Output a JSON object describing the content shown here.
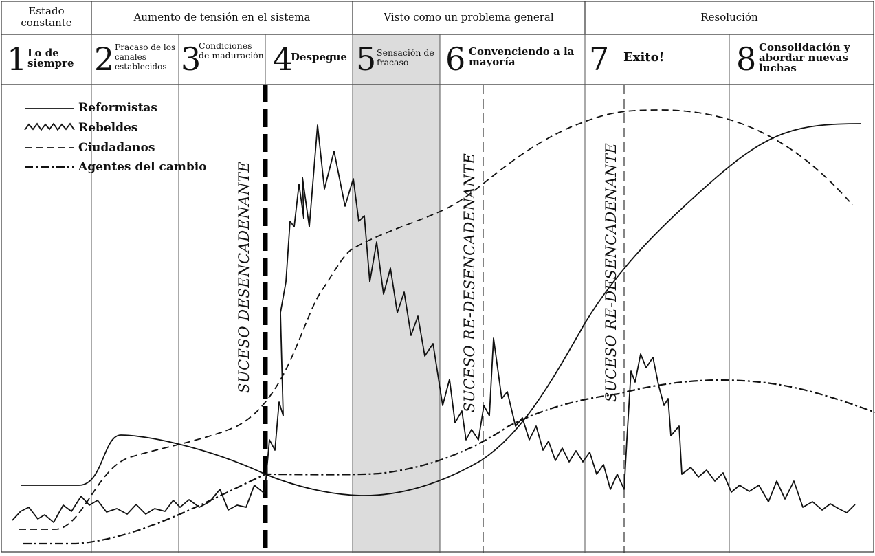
{
  "groups": [
    {
      "label": "Estado constante"
    },
    {
      "label": "Aumento de tensión en el sistema"
    },
    {
      "label": "Visto como un problema general"
    },
    {
      "label": "Resolución"
    }
  ],
  "stages": [
    {
      "num": "1",
      "label": "Lo de siempre"
    },
    {
      "num": "2",
      "label": "Fracaso de los canales establecidos"
    },
    {
      "num": "3",
      "label": "Condiciones de maduración"
    },
    {
      "num": "4",
      "label": "Despegue"
    },
    {
      "num": "5",
      "label": "Sensación de fracaso"
    },
    {
      "num": "6",
      "label": "Convenciendo a la mayoría"
    },
    {
      "num": "7",
      "label": "Exito!"
    },
    {
      "num": "8",
      "label": "Consolidación y abordar nuevas luchas"
    }
  ],
  "legend": [
    {
      "label": "Reformistas",
      "style": "solid"
    },
    {
      "label": "Rebeldes",
      "style": "zigzag"
    },
    {
      "label": "Ciudadanos",
      "style": "dashed"
    },
    {
      "label": "Agentes del cambio",
      "style": "dashdot"
    }
  ],
  "events": [
    {
      "label": "SUCESO DESENCADENANTE"
    },
    {
      "label": "SUCESO RE-DESENCADENANTE"
    },
    {
      "label": "SUCESO RE-DESENCADENANTE"
    }
  ],
  "colors": {
    "line": "#111111",
    "shade": "#dcdcdc",
    "grid": "#555555"
  }
}
